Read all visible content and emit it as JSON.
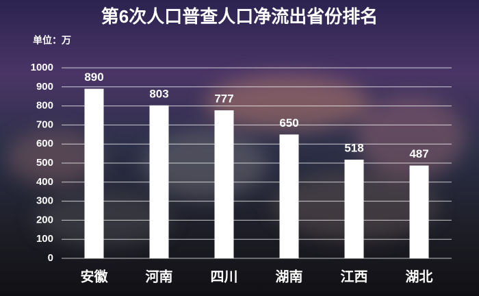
{
  "chart_data": {
    "type": "bar",
    "title": "第6次人口普查人口净流出省份排名",
    "unit_label": "单位：万",
    "categories": [
      "安徽",
      "河南",
      "四川",
      "湖南",
      "江西",
      "湖北"
    ],
    "values": [
      890,
      803,
      777,
      650,
      518,
      487
    ],
    "color": "#ffffff",
    "ylim": [
      0,
      1000
    ],
    "yticks": [
      0,
      100,
      200,
      300,
      400,
      500,
      600,
      700,
      800,
      900,
      1000
    ],
    "grid": true
  }
}
